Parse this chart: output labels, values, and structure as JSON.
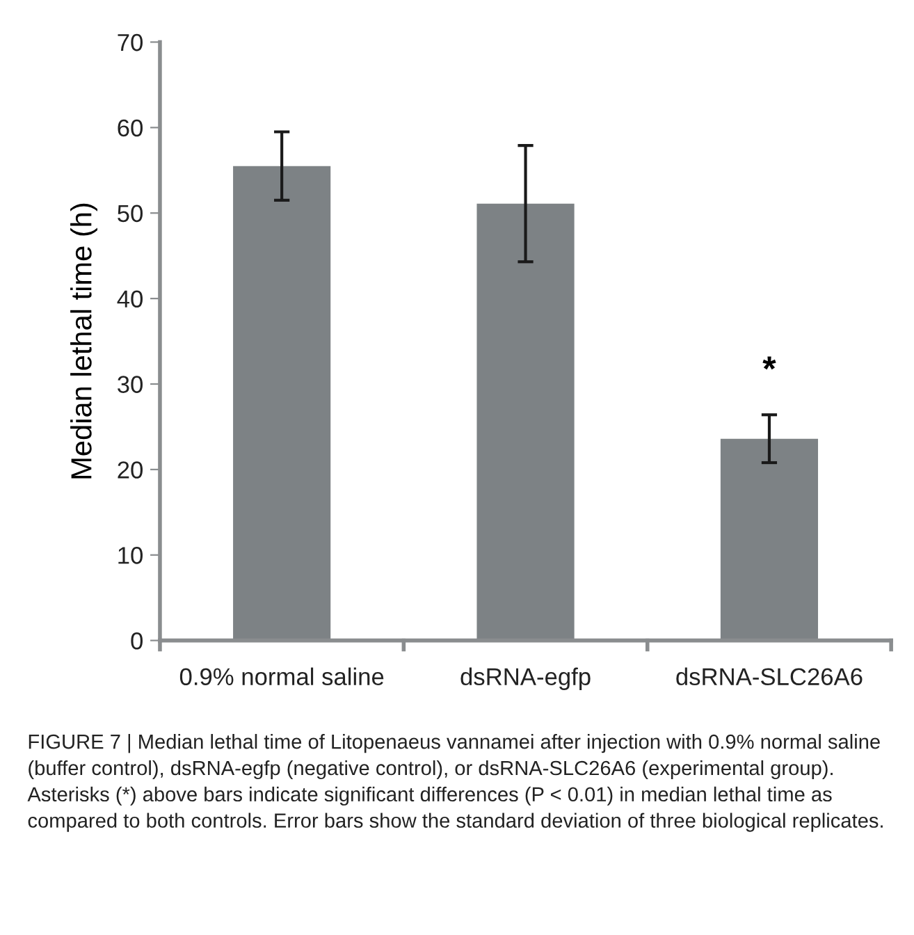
{
  "chart_data": {
    "type": "bar",
    "ylabel": "Median lethal time (h)",
    "categories": [
      "0.9% normal saline",
      "dsRNA-egfp",
      "dsRNA-SLC26A6"
    ],
    "values": [
      55.5,
      51.1,
      23.6
    ],
    "errors": [
      4.0,
      6.8,
      2.8
    ],
    "color": "#7d8285",
    "ylim": [
      0,
      70
    ],
    "yticks": [
      0,
      10,
      20,
      30,
      40,
      50,
      60,
      70
    ],
    "grid": false,
    "annotations": [
      "*",
      "FIGURE 7 | Median lethal time of Litopenaeus vannamei after injection with 0.9% normal saline (buffer control), dsRNA-egfp (negative control), or dsRNA-SLC26A6 (experimental group). Asterisks (*) above bars indicate significant differences (P < 0.01) in median lethal time as compared to both controls. Error bars show the standard deviation of three biological replicates."
    ]
  }
}
